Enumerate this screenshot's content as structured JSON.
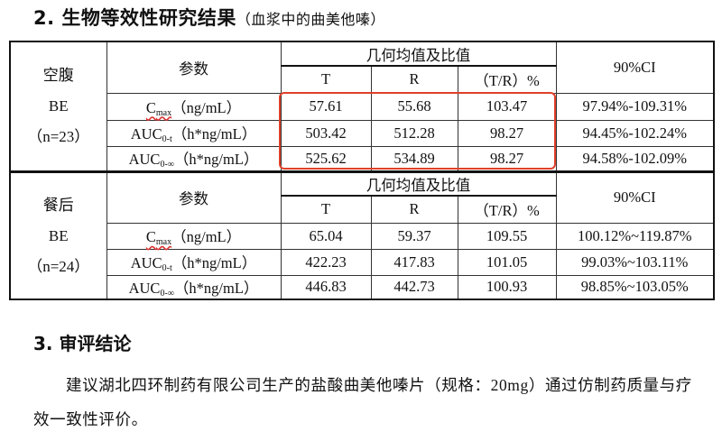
{
  "section2": {
    "title": "2. 生物等效性研究结果",
    "subtitle": "（血浆中的曲美他嗪）"
  },
  "header": {
    "param": "参数",
    "geo": "几何均值及比值",
    "T": "T",
    "R": "R",
    "ratio": "（T/R）%",
    "ci": "90%CI"
  },
  "groups": [
    {
      "l1": "空腹",
      "l2": "BE",
      "l3": "（n=23）",
      "rows": [
        {
          "name": "C",
          "sub": "max",
          "unit": "（ng/mL）",
          "T": "57.61",
          "R": "55.68",
          "ratio": "103.47",
          "ci": "97.94%-109.31%"
        },
        {
          "name": "AUC",
          "sub": "0-t",
          "unit": "（h*ng/mL）",
          "T": "503.42",
          "R": "512.28",
          "ratio": "98.27",
          "ci": "94.45%-102.24%"
        },
        {
          "name": "AUC",
          "sub": "0-∞",
          "unit": "（h*ng/mL）",
          "T": "525.62",
          "R": "534.89",
          "ratio": "98.27",
          "ci": "94.58%-102.09%"
        }
      ]
    },
    {
      "l1": "餐后",
      "l2": "BE",
      "l3": "（n=24）",
      "rows": [
        {
          "name": "C",
          "sub": "max",
          "unit": "（ng/mL）",
          "T": "65.04",
          "R": "59.37",
          "ratio": "109.55",
          "ci": "100.12%~119.87%"
        },
        {
          "name": "AUC",
          "sub": "0-t",
          "unit": "（h*ng/mL）",
          "T": "422.23",
          "R": "417.83",
          "ratio": "101.05",
          "ci": "99.03%~103.11%"
        },
        {
          "name": "AUC",
          "sub": "0-∞",
          "unit": "（h*ng/mL）",
          "T": "446.83",
          "R": "442.73",
          "ratio": "100.93",
          "ci": "98.85%~103.05%"
        }
      ]
    }
  ],
  "highlight_color": "#e0402a",
  "section3": {
    "title": "3. 审评结论",
    "body": "建议湖北四环制药有限公司生产的盐酸曲美他嗪片（规格：20mg）通过仿制药质量与疗效一致性评价。"
  }
}
